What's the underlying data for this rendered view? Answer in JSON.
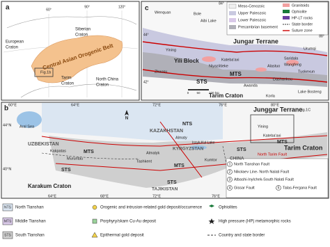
{
  "panel_a": {
    "labels": [
      "a",
      "European",
      "Craton",
      "Siberian",
      "Craton",
      "Central Asian Orogenic Belt",
      "Fig.1b",
      "Tarim",
      "Craton",
      "North China",
      "Craton",
      "60°",
      "90°",
      "120°"
    ]
  },
  "panel_c": {
    "legend": [
      "Meso-Cenozoic",
      "Upper Paleozoic",
      "Lower Paleozoic",
      "Precambrian basement",
      "Granitoids",
      "Ophiolite",
      "HP-LT rocks",
      "State border",
      "Suture zone"
    ],
    "labels": [
      "c",
      "Wenquan",
      "Bole",
      "Aibi Lake",
      "Jungar Terrane",
      "Yining",
      "Yili Block",
      "Zhaosu",
      "Kateba'axi",
      "Niyaziitieke",
      "MTS",
      "Saridala",
      "Wangfeng",
      "Tuokexun",
      "Alastuo",
      "Dashankou",
      "STS",
      "Awanda",
      "Tarim Craton",
      "Korla",
      "Lake Bosteng",
      "Urumqi",
      "0",
      "50",
      "100 km",
      "84°",
      "88°",
      "44°",
      "42°"
    ]
  },
  "panel_b": {
    "labels": [
      "b",
      "60°E",
      "64°E",
      "72°E",
      "76°E",
      "80°E",
      "64°E",
      "68°E",
      "72°E",
      "76°E",
      "44°N",
      "40°N",
      "Aral Sea",
      "N",
      "KAZAKHSTAN",
      "NTS",
      "Almaty",
      "UZBEKISTAN",
      "Kakpatas",
      "Muruntau",
      "MTS",
      "STS",
      "Karakum Craton",
      "Almalyk",
      "Tashkent",
      "KYRGYZSTAN",
      "Issyk-Kul Lake",
      "Kumtor",
      "MTS",
      "STS",
      "TAJIKISTAN",
      "CHINA",
      "Junggar Terrane",
      "Fig.1C",
      "Yining",
      "Kateba'axi",
      "MTS",
      "STS",
      "North Tarim Fault",
      "Tarim Craton"
    ],
    "faults": [
      {
        "number": 1,
        "name": "North Tianshan Fault"
      },
      {
        "number": 2,
        "name": "Nikolaev Line- North Nalati Fault"
      },
      {
        "number": 3,
        "name": "Atbashi-Inylchek-South Nalati Fault"
      },
      {
        "number": 4,
        "name": "Gissar Fault"
      },
      {
        "number": 5,
        "name": "Talas-Fergana Fault"
      }
    ]
  },
  "legend": [
    {
      "abbr": "NTS",
      "text": "North Tianshan"
    },
    {
      "abbr": "MTS",
      "text": "Middle Tianshan"
    },
    {
      "abbr": "STS",
      "text": "South Tianshan"
    },
    {
      "text": "Orogenic and intrusion-related gold deposit/occurrence"
    },
    {
      "text": "Porphyry/skarn Cu-Au deposit"
    },
    {
      "text": "Epithermal gold deposit"
    },
    {
      "text": "Ophiolites"
    },
    {
      "text": "High pressure (HP) metamorphic rocks"
    },
    {
      "text": "Country and state border"
    }
  ]
}
